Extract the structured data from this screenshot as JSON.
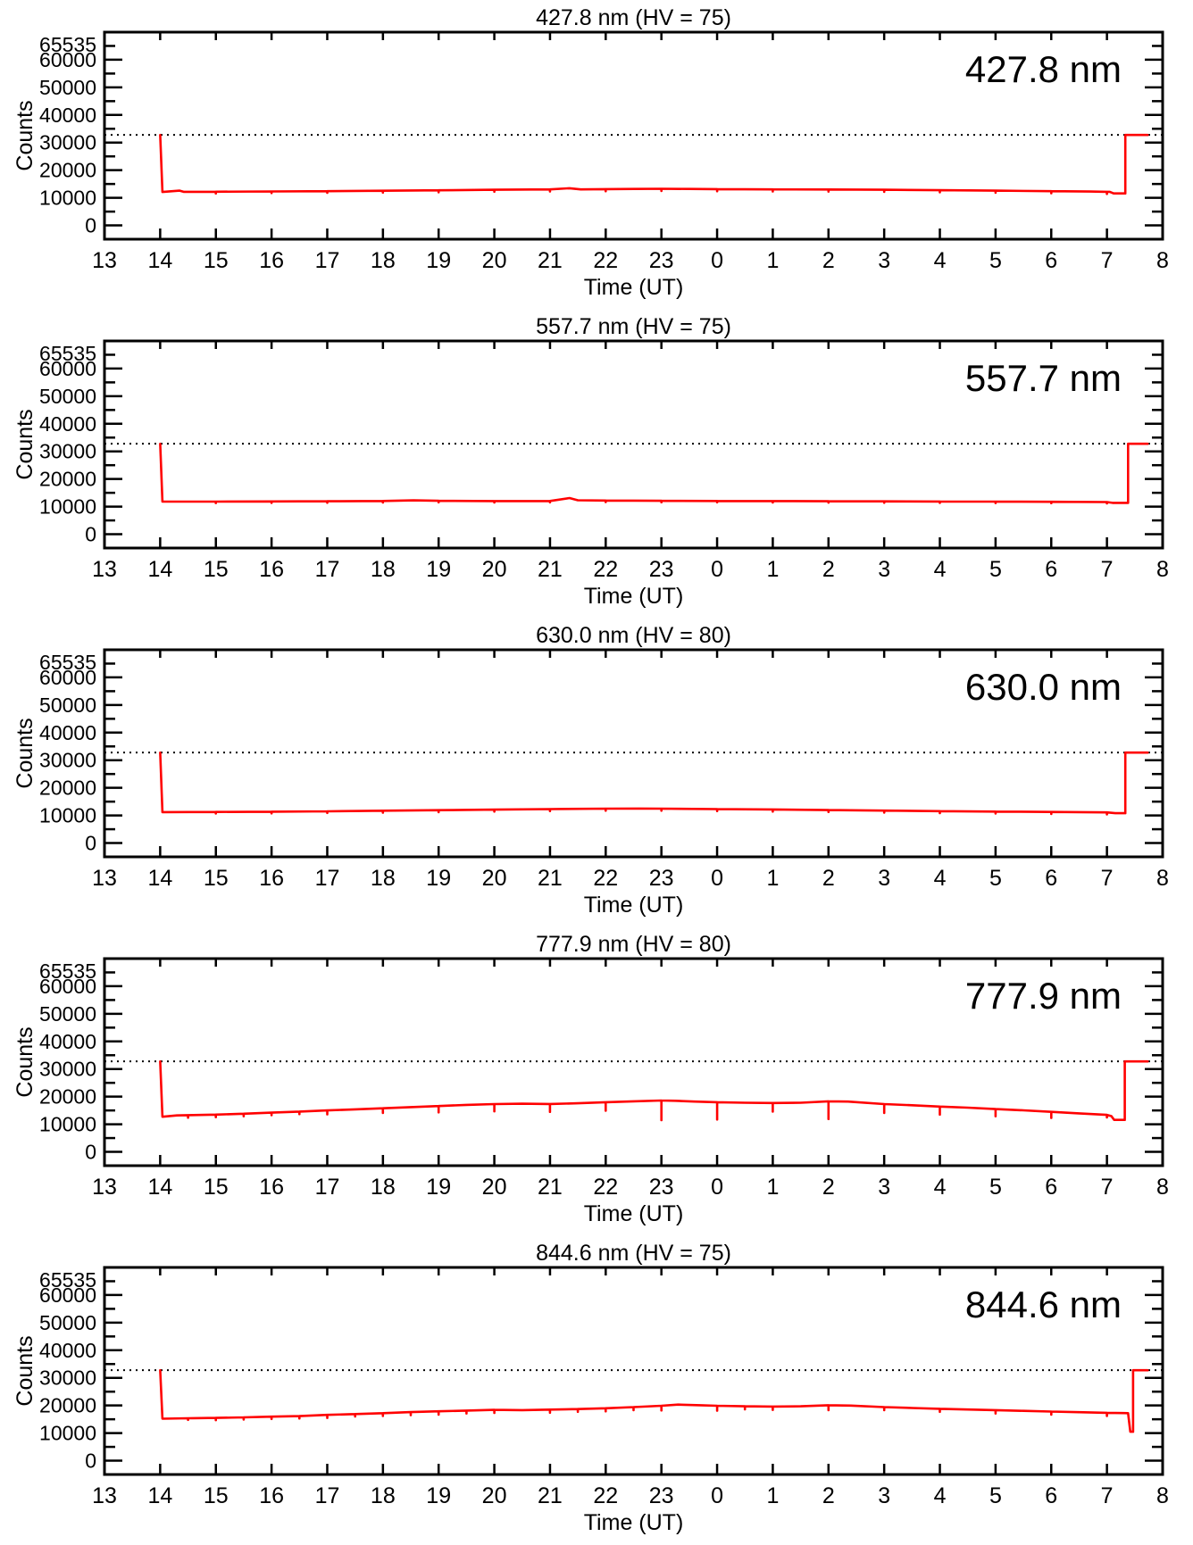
{
  "page": {
    "background": "#ffffff",
    "text_color": "#000000",
    "description_counts_panels": 5
  },
  "axes": {
    "x_label": "Time (UT)",
    "y_label": "Counts",
    "x_tick_labels": [
      "13",
      "14",
      "15",
      "16",
      "17",
      "18",
      "19",
      "20",
      "21",
      "22",
      "23",
      "0",
      "1",
      "2",
      "3",
      "4",
      "5",
      "6",
      "7",
      "8"
    ],
    "y_tick_labels": [
      "0",
      "10000",
      "20000",
      "30000",
      "40000",
      "50000",
      "60000"
    ],
    "y_major_ticks": [
      0,
      10000,
      20000,
      30000,
      40000,
      50000,
      60000
    ],
    "y_minor_ticks": [
      5000,
      15000,
      25000,
      35000,
      45000,
      55000,
      65000
    ],
    "y_top_label": "65535",
    "y_top_value": 65535,
    "ylim": [
      -5000,
      70000
    ],
    "xlim_hours": [
      13,
      32
    ],
    "threshold_counts": 32767,
    "threshold_style": "dotted",
    "grid": "off",
    "line_color": "#ff0000",
    "axis_color": "#000000"
  },
  "chart_data": [
    {
      "type": "line",
      "title": "427.8 nm (HV = 75)",
      "wavelength_label": "427.8 nm",
      "hv": "75",
      "xlabel": "Time (UT)",
      "ylabel": "Counts",
      "series": {
        "name": "counts",
        "color": "#ff0000",
        "points": [
          [
            14,
            32767
          ],
          [
            14.04,
            12100
          ],
          [
            14.35,
            12600
          ],
          [
            14.42,
            12150
          ],
          [
            15,
            12200
          ],
          [
            16,
            12300
          ],
          [
            17,
            12400
          ],
          [
            18,
            12550
          ],
          [
            19,
            12700
          ],
          [
            20,
            12900
          ],
          [
            21,
            13050
          ],
          [
            21.35,
            13450
          ],
          [
            21.55,
            13050
          ],
          [
            22,
            13150
          ],
          [
            22.5,
            13200
          ],
          [
            23,
            13250
          ],
          [
            23.5,
            13200
          ],
          [
            24,
            13150
          ],
          [
            25,
            13050
          ],
          [
            26,
            13000
          ],
          [
            27,
            12900
          ],
          [
            28,
            12750
          ],
          [
            29,
            12600
          ],
          [
            30,
            12400
          ],
          [
            30.7,
            12250
          ],
          [
            31.05,
            12150
          ],
          [
            31.12,
            11600
          ],
          [
            31.33,
            11600
          ],
          [
            31.33,
            32767
          ],
          [
            31.73,
            32767
          ]
        ]
      },
      "spikes": [
        [
          15,
          11600
        ],
        [
          16,
          11700
        ],
        [
          17,
          11800
        ],
        [
          18,
          11900
        ],
        [
          19,
          12000
        ],
        [
          20,
          12200
        ],
        [
          21,
          12300
        ],
        [
          22,
          12400
        ],
        [
          23,
          12500
        ],
        [
          24,
          12400
        ],
        [
          25,
          12300
        ],
        [
          26,
          12250
        ],
        [
          27,
          12150
        ],
        [
          28,
          12000
        ],
        [
          29,
          11850
        ],
        [
          30,
          11650
        ],
        [
          31,
          11400
        ]
      ]
    },
    {
      "type": "line",
      "title": "557.7 nm (HV = 75)",
      "wavelength_label": "557.7 nm",
      "hv": "75",
      "xlabel": "Time (UT)",
      "ylabel": "Counts",
      "series": {
        "name": "counts",
        "color": "#ff0000",
        "points": [
          [
            14,
            32767
          ],
          [
            14.04,
            11800
          ],
          [
            15,
            11820
          ],
          [
            16,
            11880
          ],
          [
            17,
            11950
          ],
          [
            18,
            12050
          ],
          [
            18.55,
            12250
          ],
          [
            19,
            12100
          ],
          [
            20,
            12000
          ],
          [
            21,
            12050
          ],
          [
            21.35,
            13100
          ],
          [
            21.5,
            12300
          ],
          [
            22,
            12200
          ],
          [
            23,
            12100
          ],
          [
            24,
            12050
          ],
          [
            25,
            12000
          ],
          [
            26,
            11950
          ],
          [
            27,
            11900
          ],
          [
            28,
            11850
          ],
          [
            29,
            11800
          ],
          [
            30,
            11750
          ],
          [
            31,
            11650
          ],
          [
            31.1,
            11350
          ],
          [
            31.38,
            11350
          ],
          [
            31.38,
            32767
          ],
          [
            31.73,
            32767
          ]
        ]
      },
      "spikes": [
        [
          15,
          11300
        ],
        [
          16,
          11350
        ],
        [
          17,
          11400
        ],
        [
          18,
          11500
        ],
        [
          19,
          11550
        ],
        [
          20,
          11500
        ],
        [
          21,
          11550
        ],
        [
          22,
          11650
        ],
        [
          23,
          11600
        ],
        [
          24,
          11550
        ],
        [
          25,
          11500
        ],
        [
          26,
          11450
        ],
        [
          27,
          11400
        ],
        [
          28,
          11350
        ],
        [
          29,
          11300
        ],
        [
          30,
          11250
        ],
        [
          31,
          11150
        ]
      ]
    },
    {
      "type": "line",
      "title": "630.0 nm (HV = 80)",
      "wavelength_label": "630.0 nm",
      "hv": "80",
      "xlabel": "Time (UT)",
      "ylabel": "Counts",
      "series": {
        "name": "counts",
        "color": "#ff0000",
        "points": [
          [
            14,
            32767
          ],
          [
            14.04,
            11200
          ],
          [
            15,
            11250
          ],
          [
            16,
            11350
          ],
          [
            17,
            11500
          ],
          [
            18,
            11700
          ],
          [
            19,
            11900
          ],
          [
            20,
            12100
          ],
          [
            21,
            12300
          ],
          [
            22,
            12450
          ],
          [
            22.6,
            12500
          ],
          [
            23,
            12450
          ],
          [
            24,
            12300
          ],
          [
            25,
            12150
          ],
          [
            26,
            11950
          ],
          [
            27,
            11750
          ],
          [
            28,
            11550
          ],
          [
            29,
            11400
          ],
          [
            30,
            11250
          ],
          [
            31,
            11100
          ],
          [
            31.15,
            10800
          ],
          [
            31.33,
            10800
          ],
          [
            31.33,
            32767
          ],
          [
            31.73,
            32767
          ]
        ]
      },
      "spikes": [
        [
          15,
          10700
        ],
        [
          16,
          10750
        ],
        [
          17,
          10900
        ],
        [
          18,
          11000
        ],
        [
          19,
          11200
        ],
        [
          20,
          11400
        ],
        [
          21,
          11600
        ],
        [
          22,
          11700
        ],
        [
          23,
          11700
        ],
        [
          24,
          11600
        ],
        [
          25,
          11400
        ],
        [
          26,
          11250
        ],
        [
          27,
          11050
        ],
        [
          28,
          10850
        ],
        [
          29,
          10700
        ],
        [
          30,
          10550
        ],
        [
          31,
          10400
        ]
      ]
    },
    {
      "type": "line",
      "title": "777.9 nm (HV = 80)",
      "wavelength_label": "777.9 nm",
      "hv": "80",
      "xlabel": "Time (UT)",
      "ylabel": "Counts",
      "series": {
        "name": "counts",
        "color": "#ff0000",
        "points": [
          [
            14,
            32767
          ],
          [
            14.04,
            12700
          ],
          [
            14.3,
            13200
          ],
          [
            15,
            13500
          ],
          [
            15.5,
            13800
          ],
          [
            16,
            14200
          ],
          [
            16.5,
            14600
          ],
          [
            17,
            15000
          ],
          [
            17.5,
            15400
          ],
          [
            18,
            15800
          ],
          [
            18.5,
            16200
          ],
          [
            19,
            16600
          ],
          [
            19.5,
            17000
          ],
          [
            20,
            17300
          ],
          [
            20.5,
            17450
          ],
          [
            21,
            17350
          ],
          [
            21.5,
            17600
          ],
          [
            22,
            18000
          ],
          [
            22.5,
            18300
          ],
          [
            23,
            18600
          ],
          [
            23.25,
            18500
          ],
          [
            23.6,
            18200
          ],
          [
            24,
            18000
          ],
          [
            24.5,
            17800
          ],
          [
            25,
            17700
          ],
          [
            25.5,
            17800
          ],
          [
            26,
            18300
          ],
          [
            26.35,
            18200
          ],
          [
            27,
            17300
          ],
          [
            27.5,
            16900
          ],
          [
            28,
            16400
          ],
          [
            28.5,
            16000
          ],
          [
            29,
            15500
          ],
          [
            29.5,
            15050
          ],
          [
            30,
            14500
          ],
          [
            30.5,
            13950
          ],
          [
            31,
            13400
          ],
          [
            31.08,
            12950
          ],
          [
            31.13,
            11600
          ],
          [
            31.32,
            11600
          ],
          [
            31.32,
            32767
          ],
          [
            31.73,
            32767
          ]
        ]
      },
      "spikes": [
        [
          14.5,
          12400
        ],
        [
          15,
          12600
        ],
        [
          15.5,
          12900
        ],
        [
          16,
          13300
        ],
        [
          16.5,
          13700
        ],
        [
          17,
          13600
        ],
        [
          18,
          14100
        ],
        [
          19,
          14300
        ],
        [
          20,
          14700
        ],
        [
          21,
          14500
        ],
        [
          22,
          14900
        ],
        [
          23,
          11500
        ],
        [
          24,
          11700
        ],
        [
          25,
          14600
        ],
        [
          26,
          11900
        ],
        [
          27,
          14100
        ],
        [
          28,
          13500
        ],
        [
          29,
          12900
        ],
        [
          30,
          12300
        ],
        [
          31,
          12500
        ]
      ]
    },
    {
      "type": "line",
      "title": "844.6 nm (HV = 75)",
      "wavelength_label": "844.6 nm",
      "hv": "75",
      "xlabel": "Time (UT)",
      "ylabel": "Counts",
      "series": {
        "name": "counts",
        "color": "#ff0000",
        "points": [
          [
            14,
            32767
          ],
          [
            14.04,
            15200
          ],
          [
            14.6,
            15400
          ],
          [
            15,
            15500
          ],
          [
            15.5,
            15700
          ],
          [
            16,
            15950
          ],
          [
            16.5,
            16150
          ],
          [
            17,
            16600
          ],
          [
            17.5,
            16900
          ],
          [
            18,
            17200
          ],
          [
            18.5,
            17600
          ],
          [
            19,
            17900
          ],
          [
            19.5,
            18150
          ],
          [
            20,
            18400
          ],
          [
            20.5,
            18300
          ],
          [
            21,
            18500
          ],
          [
            21.5,
            18700
          ],
          [
            22,
            19000
          ],
          [
            22.5,
            19400
          ],
          [
            23,
            19900
          ],
          [
            23.3,
            20300
          ],
          [
            23.7,
            20100
          ],
          [
            24,
            19900
          ],
          [
            24.5,
            19700
          ],
          [
            25,
            19600
          ],
          [
            25.5,
            19700
          ],
          [
            26,
            20100
          ],
          [
            26.4,
            19950
          ],
          [
            27,
            19400
          ],
          [
            27.5,
            19100
          ],
          [
            28,
            18800
          ],
          [
            28.5,
            18550
          ],
          [
            29,
            18300
          ],
          [
            29.5,
            18050
          ],
          [
            30,
            17800
          ],
          [
            30.5,
            17550
          ],
          [
            31,
            17350
          ],
          [
            31.3,
            17250
          ],
          [
            31.38,
            17200
          ],
          [
            31.42,
            10500
          ],
          [
            31.47,
            10500
          ],
          [
            31.47,
            32767
          ],
          [
            31.73,
            32767
          ]
        ]
      },
      "spikes": [
        [
          14.5,
          14800
        ],
        [
          15,
          14700
        ],
        [
          15.5,
          14900
        ],
        [
          16,
          15100
        ],
        [
          16.5,
          15300
        ],
        [
          17,
          15500
        ],
        [
          17.5,
          16000
        ],
        [
          18,
          16200
        ],
        [
          18.5,
          16500
        ],
        [
          19,
          16700
        ],
        [
          19.5,
          17100
        ],
        [
          20,
          17300
        ],
        [
          21,
          17400
        ],
        [
          21.5,
          17700
        ],
        [
          22,
          17900
        ],
        [
          22.5,
          18300
        ],
        [
          23,
          18200
        ],
        [
          24,
          18100
        ],
        [
          24.5,
          18600
        ],
        [
          25,
          18400
        ],
        [
          26,
          18300
        ],
        [
          27,
          18300
        ],
        [
          28,
          17700
        ],
        [
          29,
          17100
        ],
        [
          30,
          16700
        ],
        [
          31,
          16200
        ]
      ]
    }
  ]
}
